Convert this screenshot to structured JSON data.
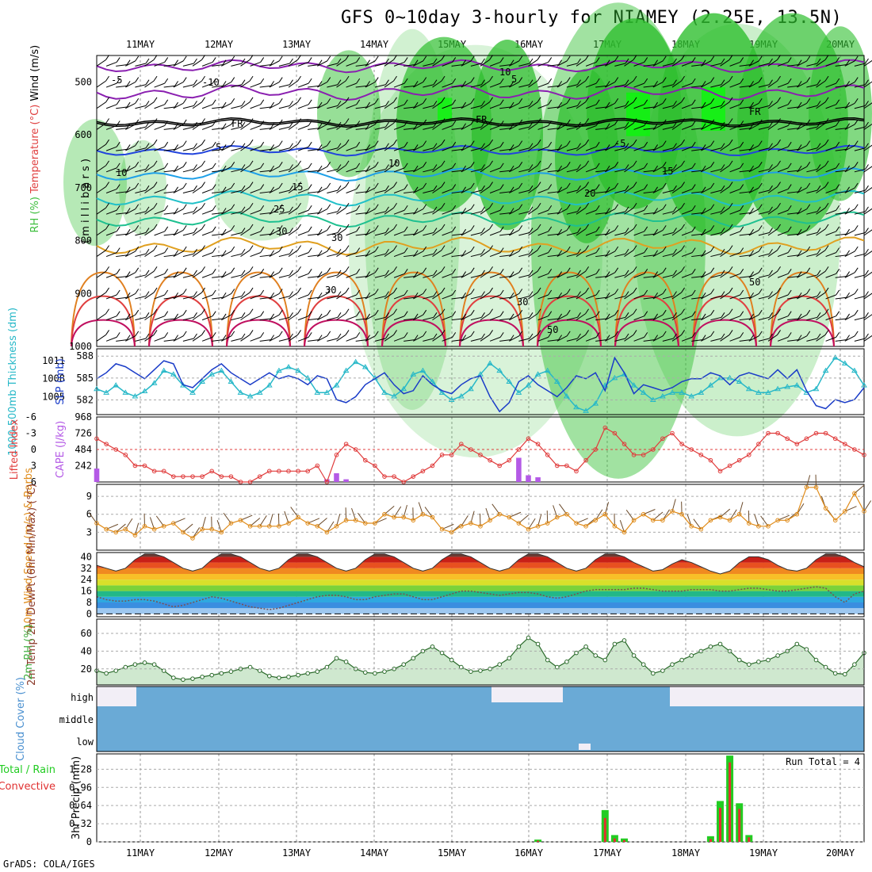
{
  "title": "GFS 0~10day 3-hourly for NIAMEY (2.25E, 13.5N)",
  "credit": "GrADS: COLA/IGES",
  "dates": [
    "11MAY",
    "12MAY",
    "13MAY",
    "14MAY",
    "15MAY",
    "16MAY",
    "17MAY",
    "18MAY",
    "19MAY",
    "20MAY"
  ],
  "colors": {
    "rh_green": "#3cbe3c",
    "temp_red": "#e04040",
    "wind_black": "#000000",
    "thick_cyan": "#27b8c8",
    "slp_blue": "#1a3cc8",
    "lifted_red": "#e03c3c",
    "cape_purple": "#b45ae6",
    "wind10_orange": "#e08c1a",
    "rh2m_green": "#44b044",
    "cloud_blue": "#6aaad6",
    "precip_green": "#22cc22",
    "precip_red": "#e03030"
  },
  "chart_data": [
    {
      "type": "heatmap",
      "panel": "upper-air",
      "ylabel_parts": [
        {
          "text": "RH (%)",
          "color": "#3cbe3c"
        },
        {
          "text": "Temperature (°C)",
          "color": "#e04040"
        },
        {
          "text": "Wind (m/s)",
          "color": "#000000"
        }
      ],
      "ylabel2": "( m i l l i b a r s )",
      "y_ticks": [
        500,
        600,
        700,
        800,
        900,
        1000
      ],
      "ylim": [
        1000,
        450
      ],
      "contour_labels": [
        "-5",
        "5",
        "FR",
        "FR",
        "FR",
        "5",
        "-5",
        "10",
        "10",
        "15",
        "15",
        "20",
        "25",
        "30",
        "30",
        "30",
        "50",
        "50",
        "30",
        "10",
        "-10"
      ]
    },
    {
      "type": "line",
      "panel": "thickness-slp",
      "ylabel_left": "1000-500mb Thickness (dm)",
      "ylabel_right": "SLP (mb)",
      "y_ticks_left": [
        582,
        585,
        588
      ],
      "y_ticks_right": [
        1005,
        1008,
        1011
      ],
      "series": [
        {
          "values": [
            583.5,
            583.0,
            584.0,
            583.0,
            582.5,
            583.2,
            584.3,
            586.0,
            585.5,
            584.0,
            583.0,
            584.5,
            585.5,
            586.0,
            584.5,
            583.0,
            582.5,
            583.0,
            584.0,
            586.0,
            586.5,
            586.0,
            585.0,
            583.0,
            583.0,
            584.0,
            586.0,
            587.2,
            586.5,
            585.0,
            583.0,
            582.5,
            583.5,
            585.5,
            586.0,
            584.5,
            583.0,
            582.0,
            582.5,
            583.5,
            585.5,
            587.0,
            586.0,
            584.5,
            583.0,
            584.0,
            585.5,
            586.0,
            584.5,
            582.5,
            581.0,
            580.5,
            581.5,
            584.0,
            585.0,
            585.5,
            584.0,
            583.0,
            582.0,
            582.5,
            583.0,
            583.0,
            582.5,
            583.0,
            584.0,
            585.0,
            585.0,
            584.5,
            583.5,
            583.0,
            583.0,
            583.5,
            583.8,
            584.0,
            583.0,
            583.5,
            586.0,
            587.8,
            587.0,
            586.0,
            584.0
          ]
        },
        {
          "values": [
            1008.0,
            1009.0,
            1010.5,
            1010.0,
            1009.0,
            1008.0,
            1009.5,
            1011.0,
            1010.5,
            1007.0,
            1006.5,
            1008.0,
            1009.5,
            1010.5,
            1009.0,
            1008.0,
            1007.0,
            1008.0,
            1009.0,
            1008.0,
            1008.5,
            1008.0,
            1007.0,
            1008.5,
            1008.0,
            1004.5,
            1004.0,
            1005.0,
            1007.0,
            1008.0,
            1009.0,
            1007.0,
            1005.5,
            1006.0,
            1008.5,
            1007.0,
            1006.0,
            1005.5,
            1007.0,
            1008.0,
            1008.5,
            1005.0,
            1002.5,
            1004.0,
            1007.5,
            1008.5,
            1007.0,
            1006.0,
            1005.0,
            1006.5,
            1008.5,
            1008.0,
            1009.0,
            1006.0,
            1011.5,
            1009.0,
            1005.5,
            1007.0,
            1006.5,
            1006.0,
            1006.5,
            1007.5,
            1008.0,
            1008.0,
            1009.0,
            1008.5,
            1007.0,
            1008.5,
            1009.0,
            1008.5,
            1008.0,
            1009.5,
            1008.0,
            1009.5,
            1006.0,
            1003.5,
            1003.0,
            1004.5,
            1004.0,
            1004.5,
            1006.5
          ]
        }
      ]
    },
    {
      "type": "bar",
      "panel": "lifted-cape",
      "ylabel_left": "Lifted Index",
      "ylabel_right": "CAPE (J/kg)",
      "y_ticks_left": [
        "-6",
        "-3",
        "0",
        "3",
        "6"
      ],
      "y_ticks_right": [
        "242",
        "484",
        "726",
        "968"
      ],
      "series": [
        {
          "name": "CAPE",
          "values": [
            200,
            0,
            0,
            0,
            0,
            0,
            0,
            0,
            0,
            0,
            0,
            0,
            0,
            0,
            0,
            0,
            0,
            0,
            0,
            0,
            0,
            0,
            0,
            0,
            40,
            130,
            40,
            0,
            0,
            0,
            0,
            0,
            0,
            0,
            0,
            0,
            0,
            0,
            0,
            0,
            0,
            0,
            0,
            0,
            360,
            100,
            70,
            0,
            0,
            0,
            0,
            0,
            0,
            0,
            0,
            0,
            0,
            0,
            0,
            0,
            0,
            0,
            0,
            0,
            0,
            0,
            0,
            0,
            0,
            0,
            0,
            0,
            0,
            0,
            0,
            0,
            0,
            0,
            0,
            0,
            0
          ]
        },
        {
          "name": "Lifted Index",
          "values": [
            -2,
            -1,
            0,
            1,
            3,
            3,
            4,
            4,
            5,
            5,
            5,
            5,
            4,
            5,
            5,
            6,
            6,
            5,
            4,
            4,
            4,
            4,
            4,
            3,
            6,
            1,
            -1,
            0,
            2,
            3,
            5,
            5,
            6,
            5,
            4,
            3,
            1,
            1,
            -1,
            0,
            1,
            2,
            3,
            2,
            0,
            -2,
            -1,
            1,
            3,
            3,
            4,
            2,
            0,
            -4,
            -3,
            -1,
            1,
            1,
            0,
            -2,
            -3,
            -1,
            0,
            1,
            2,
            4,
            3,
            2,
            1,
            -1,
            -3,
            -3,
            -2,
            -1,
            -2,
            -3,
            -3,
            -2,
            -1,
            0,
            1
          ]
        }
      ]
    },
    {
      "type": "line",
      "panel": "wind10m",
      "ylabel": "10m Wind Speed (m/s) & Barbs",
      "y_ticks": [
        3,
        6,
        9
      ],
      "series": [
        {
          "values": [
            4.5,
            3.5,
            3.0,
            3.5,
            2.5,
            4.0,
            3.5,
            4.0,
            4.5,
            3.0,
            2.0,
            3.5,
            3.5,
            3.0,
            4.5,
            5.0,
            4.0,
            4.0,
            4.0,
            4.0,
            4.5,
            5.5,
            4.5,
            4.0,
            3.0,
            4.0,
            5.0,
            5.0,
            4.5,
            4.5,
            6.0,
            5.5,
            5.5,
            5.0,
            6.0,
            5.5,
            3.5,
            3.0,
            4.0,
            4.5,
            4.0,
            5.0,
            6.0,
            5.5,
            4.5,
            3.5,
            4.0,
            4.5,
            5.5,
            6.0,
            4.5,
            4.0,
            5.0,
            6.0,
            4.0,
            3.0,
            5.0,
            6.0,
            5.0,
            5.0,
            6.5,
            6.0,
            4.0,
            3.5,
            5.0,
            5.5,
            5.0,
            6.0,
            4.5,
            4.0,
            4.0,
            5.0,
            5.0,
            6.0,
            10.5,
            10.5,
            7.0,
            5.0,
            6.5,
            9.5,
            6.5
          ]
        }
      ]
    },
    {
      "type": "area",
      "panel": "temp2m",
      "ylabel": "2m Temp 2m DewPt (6hr Min/Max) (°C)",
      "y_ticks": [
        0,
        8,
        16,
        24,
        32,
        40
      ],
      "series": [
        {
          "name": "temp",
          "values": [
            34,
            32,
            30,
            32,
            38,
            42,
            42,
            40,
            36,
            32,
            30,
            32,
            38,
            42,
            42,
            40,
            36,
            32,
            30,
            32,
            38,
            42,
            42,
            40,
            36,
            32,
            30,
            32,
            38,
            42,
            42,
            40,
            36,
            32,
            30,
            32,
            38,
            42,
            42,
            40,
            36,
            32,
            30,
            32,
            38,
            42,
            42,
            40,
            36,
            32,
            30,
            32,
            38,
            42,
            42,
            40,
            36,
            33,
            30,
            31,
            35,
            38,
            36,
            33,
            30,
            28,
            30,
            36,
            40,
            40,
            38,
            34,
            31,
            30,
            32,
            38,
            42,
            42,
            40,
            36,
            33
          ]
        },
        {
          "name": "dewpoint",
          "values": [
            12,
            10,
            9,
            9,
            10,
            10,
            9,
            7,
            5,
            6,
            8,
            10,
            12,
            11,
            9,
            7,
            5,
            4,
            3,
            4,
            6,
            8,
            10,
            12,
            13,
            13,
            12,
            10,
            10,
            12,
            13,
            14,
            14,
            12,
            10,
            10,
            12,
            14,
            16,
            16,
            15,
            14,
            13,
            14,
            15,
            15,
            14,
            12,
            11,
            12,
            14,
            16,
            17,
            17,
            17,
            17,
            18,
            18,
            17,
            16,
            16,
            16,
            17,
            17,
            17,
            16,
            16,
            17,
            18,
            18,
            17,
            16,
            16,
            17,
            18,
            19,
            18,
            12,
            8,
            14,
            16
          ]
        }
      ]
    },
    {
      "type": "area",
      "panel": "rh2m",
      "ylabel": "2m RH (%)",
      "y_ticks": [
        20,
        40,
        60
      ],
      "series": [
        {
          "values": [
            18,
            15,
            18,
            22,
            25,
            27,
            25,
            18,
            10,
            8,
            9,
            11,
            13,
            15,
            17,
            20,
            22,
            18,
            12,
            10,
            11,
            13,
            15,
            17,
            22,
            32,
            28,
            20,
            16,
            15,
            17,
            20,
            25,
            32,
            40,
            45,
            38,
            30,
            22,
            17,
            18,
            20,
            25,
            32,
            45,
            55,
            48,
            30,
            22,
            28,
            38,
            45,
            35,
            30,
            48,
            52,
            35,
            25,
            15,
            18,
            25,
            30,
            35,
            40,
            45,
            48,
            40,
            30,
            25,
            28,
            30,
            35,
            40,
            48,
            42,
            30,
            22,
            15,
            14,
            25,
            38
          ]
        }
      ]
    },
    {
      "type": "heatmap",
      "panel": "cloud-cover",
      "ylabel": "Cloud Cover (%)",
      "rows": [
        "high",
        "middle",
        "low"
      ]
    },
    {
      "type": "bar",
      "panel": "precip",
      "ylabel": "3hr Precip (mm)",
      "ylabel_left_parts": [
        {
          "text": "Total / Rain",
          "color": "#22cc22"
        },
        {
          "text": "Convective",
          "color": "#e03030"
        }
      ],
      "annotation": "Run Total = 4",
      "y_ticks": [
        "0",
        "0.32",
        "0.64",
        "0.96",
        "1.28"
      ],
      "series": [
        {
          "name": "Total / Rain",
          "values": [
            0,
            0,
            0,
            0,
            0,
            0,
            0,
            0,
            0,
            0,
            0,
            0,
            0,
            0,
            0,
            0,
            0,
            0,
            0,
            0,
            0,
            0,
            0,
            0,
            0,
            0,
            0,
            0,
            0,
            0,
            0,
            0,
            0,
            0,
            0,
            0,
            0,
            0,
            0,
            0,
            0,
            0,
            0,
            0,
            0,
            0,
            0.04,
            0,
            0,
            0,
            0,
            0,
            0,
            0.56,
            0.12,
            0.06,
            0,
            0,
            0,
            0,
            0,
            0,
            0,
            0,
            0.1,
            0.72,
            1.52,
            0.68,
            0.12,
            0,
            0,
            0,
            0,
            0,
            0,
            0,
            0,
            0,
            0,
            0,
            0
          ]
        },
        {
          "name": "Convective",
          "values": [
            0,
            0,
            0,
            0,
            0,
            0,
            0,
            0,
            0,
            0,
            0,
            0,
            0,
            0,
            0,
            0,
            0,
            0,
            0,
            0,
            0,
            0,
            0,
            0,
            0,
            0,
            0,
            0,
            0,
            0,
            0,
            0,
            0,
            0,
            0,
            0,
            0,
            0,
            0,
            0,
            0,
            0,
            0,
            0,
            0,
            0,
            0.02,
            0,
            0,
            0,
            0,
            0,
            0,
            0.42,
            0.06,
            0.03,
            0,
            0,
            0,
            0,
            0,
            0,
            0,
            0,
            0.05,
            0.6,
            1.4,
            0.58,
            0.08,
            0,
            0,
            0,
            0,
            0,
            0,
            0,
            0,
            0,
            0,
            0,
            0
          ]
        }
      ]
    }
  ]
}
